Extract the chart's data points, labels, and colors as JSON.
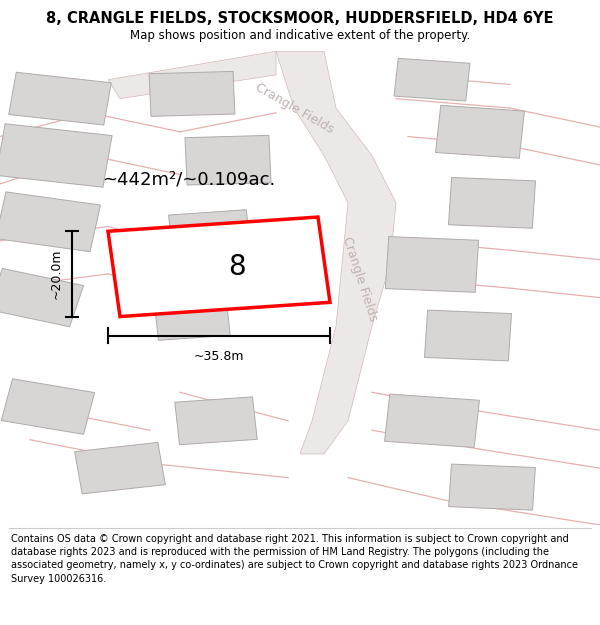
{
  "title": "8, CRANGLE FIELDS, STOCKSMOOR, HUDDERSFIELD, HD4 6YE",
  "subtitle": "Map shows position and indicative extent of the property.",
  "footer": "Contains OS data © Crown copyright and database right 2021. This information is subject to Crown copyright and database rights 2023 and is reproduced with the permission of HM Land Registry. The polygons (including the associated geometry, namely x, y co-ordinates) are subject to Crown copyright and database rights 2023 Ordnance Survey 100026316.",
  "area_label": "~442m²/~0.109ac.",
  "width_label": "~35.8m",
  "height_label": "~20.0m",
  "plot_number": "8",
  "map_bg": "#f9f6f6",
  "building_fill": "#d8d5d5",
  "building_edge": "#b0aaaa",
  "plot_edge_color": "#ff0000",
  "plot_fill": "#ffffff",
  "road_fill": "#ede8e8",
  "road_edge": "#d4b8b8",
  "pink_line": "#e8b0b0",
  "road_label_color": "#c0b0b0",
  "title_fontsize": 10.5,
  "subtitle_fontsize": 8.5,
  "footer_fontsize": 7.0,
  "annotation_fontsize": 13,
  "plot_label_fontsize": 20,
  "street_label_fontsize": 9,
  "dim_fontsize": 9
}
